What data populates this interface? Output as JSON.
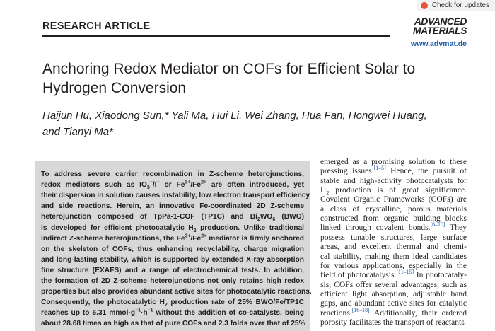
{
  "badge": {
    "text": "Check for updates"
  },
  "header": {
    "section": "RESEARCH ARTICLE",
    "journal": [
      "ADVANCED",
      "MATERIALS"
    ],
    "url": "www.advmat.de"
  },
  "article": {
    "title": [
      "Anchoring Redox Mediator on COFs for Efficient Solar to",
      "Hydrogen Conversion"
    ],
    "authors": [
      "Haijun Hu, Xiaodong Sun,* Yali Ma, Hui Li, Wei Zhang, Hua Fan, Hongwei Huang,",
      "and Tianyi Ma*"
    ]
  },
  "abstract": {
    "lines": [
      [
        "To address severe carrier recombination in Z-scheme heterojunctions,"
      ],
      [
        "redox mediators such as IO",
        {
          "sub": "3"
        },
        {
          "sup": "−"
        },
        "/I",
        {
          "sup": "−"
        },
        " or Fe",
        {
          "sup": "3+"
        },
        "/Fe",
        {
          "sup": "2+"
        },
        " are often introduced, yet"
      ],
      [
        "their dispersion in solution causes instability, low electron transport efficiency"
      ],
      [
        "and side reactions. Herein, an innovative Fe-coordinated 2D Z-scheme"
      ],
      [
        "heterojunction composed of TpPa-1-COF (TP1C) and Bi",
        {
          "sub": "2"
        },
        "WO",
        {
          "sub": "6"
        },
        " (BWO)"
      ],
      [
        "is developed for efficient photocatalytic H",
        {
          "sub": "2"
        },
        " production. Unlike traditional"
      ],
      [
        "indirect Z-scheme heterojunctions, the Fe",
        {
          "sup": "3+"
        },
        "/Fe",
        {
          "sup": "2+"
        },
        " mediator is firmly anchored"
      ],
      [
        "on the skeleton of COFs, thus enhancing recyclability, charge migration"
      ],
      [
        "and long-lasting stability, which is supported by extended X-ray absorption"
      ],
      [
        "fine structure (EXAFS) and a range of electrochemical tests. In addition,"
      ],
      [
        "the formation of 2D Z-scheme heterojunctions not only retains high redox"
      ],
      [
        "properties but also provides abundant active sites for photocatalytic reactions."
      ],
      [
        "Consequently, the photocatalytic H",
        {
          "sub": "2"
        },
        " production rate of 25% BWO/Fe/TP1C"
      ],
      [
        "reaches up to 6.31 mmol·g",
        {
          "sup": "−1"
        },
        "·h",
        {
          "sup": "−1"
        },
        " without the addition of co-catalysts, being"
      ],
      [
        "about 28.68 times as high as that of pure COFs and 2.3 folds over that of 25%"
      ]
    ]
  },
  "body": {
    "lines": [
      [
        "emerged as a promising solution to these"
      ],
      [
        "pressing issues.",
        {
          "sup": "[1–5]"
        },
        " Hence, the pursuit of"
      ],
      [
        "stable and high-activity photocatalysts for"
      ],
      [
        "H",
        {
          "sub": "2"
        },
        " production is of great significance."
      ],
      [
        "Covalent Organic Frameworks (COFs) are"
      ],
      [
        "a class of crystalline, porous materials"
      ],
      [
        "constructed from organic building blocks"
      ],
      [
        "linked through covalent bonds.",
        {
          "sup": "[6–10]"
        },
        " They"
      ],
      [
        "possess tunable structures, large surface"
      ],
      [
        "areas, and excellent thermal and chemi-"
      ],
      [
        "cal stability, making them ideal candidates"
      ],
      [
        "for various applications, especially in the"
      ],
      [
        "field of photocatalysis.",
        {
          "sup": "[11–15]"
        },
        " In photocataly-"
      ],
      [
        "sis, COFs offer several advantages, such as"
      ],
      [
        "efficient light absorption, adjustable band"
      ],
      [
        "gaps, and abundant active sites for catalytic"
      ],
      [
        "reactions.",
        {
          "sup": "[16–18]"
        },
        " Additionally, their ordered"
      ],
      [
        "porosity facilitates the transport of reactants"
      ]
    ]
  }
}
